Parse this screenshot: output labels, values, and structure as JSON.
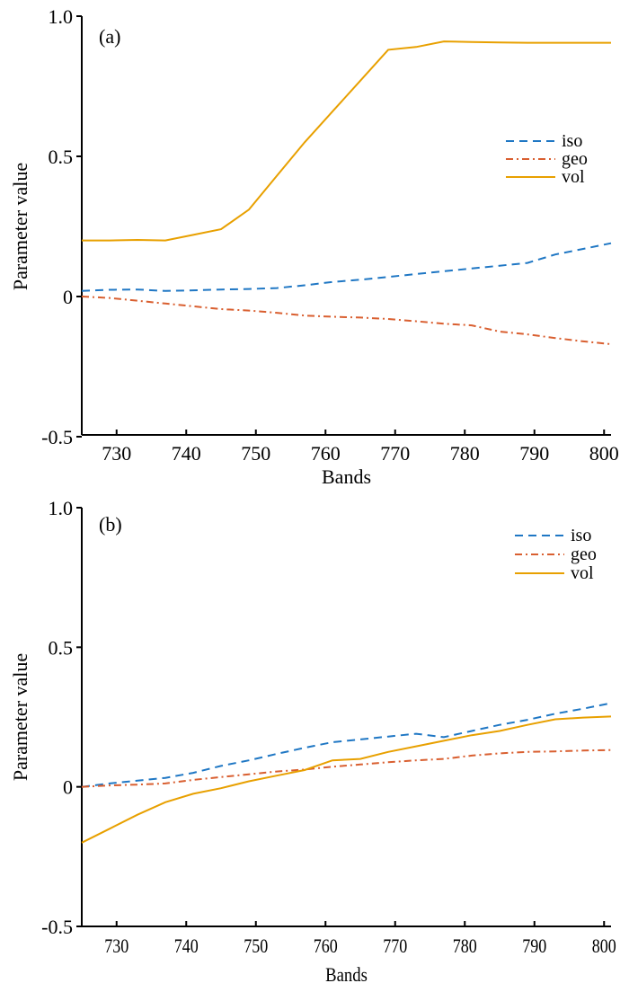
{
  "chart_data": [
    {
      "type": "line",
      "panel_label": "(a)",
      "xlabel": "Bands",
      "ylabel": "Parameter value",
      "xlim": [
        725,
        801
      ],
      "ylim": [
        -0.5,
        1.0
      ],
      "xticks": [
        730,
        740,
        750,
        760,
        770,
        780,
        790,
        800
      ],
      "yticks": [
        -0.5,
        0,
        0.5,
        1.0
      ],
      "ytick_labels": [
        "-0.5",
        "0",
        "0.5",
        "1.0"
      ],
      "grid": false,
      "legend_position": "right-middle",
      "x": [
        725,
        729,
        733,
        737,
        741,
        745,
        749,
        753,
        757,
        761,
        765,
        769,
        773,
        777,
        781,
        785,
        789,
        793,
        797,
        801
      ],
      "series": [
        {
          "name": "iso",
          "style": "dashed",
          "color": "#1f77c4",
          "values": [
            0.02,
            0.024,
            0.025,
            0.02,
            0.022,
            0.025,
            0.027,
            0.03,
            0.04,
            0.052,
            0.06,
            0.07,
            0.08,
            0.09,
            0.1,
            0.11,
            0.12,
            0.15,
            0.17,
            0.19
          ]
        },
        {
          "name": "geo",
          "style": "dashdot",
          "color": "#d95f30",
          "values": [
            0.0,
            -0.005,
            -0.015,
            -0.025,
            -0.035,
            -0.045,
            -0.05,
            -0.058,
            -0.068,
            -0.072,
            -0.075,
            -0.08,
            -0.088,
            -0.097,
            -0.103,
            -0.125,
            -0.135,
            -0.148,
            -0.16,
            -0.17
          ]
        },
        {
          "name": "vol",
          "style": "solid",
          "color": "#e8a000",
          "values": [
            0.2,
            0.2,
            0.202,
            0.2,
            0.22,
            0.24,
            0.31,
            0.43,
            0.55,
            0.66,
            0.77,
            0.88,
            0.89,
            0.91,
            0.908,
            0.906,
            0.905,
            0.905,
            0.905,
            0.905
          ]
        }
      ]
    },
    {
      "type": "line",
      "panel_label": "(b)",
      "xlabel": "Bands",
      "ylabel": "Parameter value",
      "xlim": [
        725,
        801
      ],
      "ylim": [
        -0.5,
        1.0
      ],
      "xticks": [
        730,
        740,
        750,
        760,
        770,
        780,
        790,
        800
      ],
      "yticks": [
        -0.5,
        0,
        0.5,
        1.0
      ],
      "ytick_labels": [
        "-0.5",
        "0",
        "0.5",
        "1.0"
      ],
      "grid": false,
      "legend_position": "top-right",
      "x": [
        725,
        729,
        733,
        737,
        741,
        745,
        749,
        753,
        757,
        761,
        765,
        769,
        773,
        777,
        781,
        785,
        789,
        793,
        797,
        801
      ],
      "series": [
        {
          "name": "iso",
          "style": "dashed",
          "color": "#1f77c4",
          "values": [
            0.0,
            0.012,
            0.022,
            0.032,
            0.05,
            0.075,
            0.095,
            0.118,
            0.14,
            0.16,
            0.17,
            0.18,
            0.19,
            0.178,
            0.2,
            0.222,
            0.24,
            0.262,
            0.28,
            0.3
          ]
        },
        {
          "name": "geo",
          "style": "dashdot",
          "color": "#d95f30",
          "values": [
            0.0,
            0.005,
            0.008,
            0.012,
            0.025,
            0.035,
            0.045,
            0.055,
            0.062,
            0.072,
            0.08,
            0.088,
            0.095,
            0.1,
            0.112,
            0.12,
            0.125,
            0.127,
            0.13,
            0.132
          ]
        },
        {
          "name": "vol",
          "style": "solid",
          "color": "#e8a000",
          "values": [
            -0.2,
            -0.15,
            -0.1,
            -0.055,
            -0.025,
            -0.005,
            0.02,
            0.04,
            0.06,
            0.095,
            0.1,
            0.125,
            0.145,
            0.165,
            0.185,
            0.2,
            0.222,
            0.242,
            0.248,
            0.252
          ]
        }
      ]
    }
  ]
}
